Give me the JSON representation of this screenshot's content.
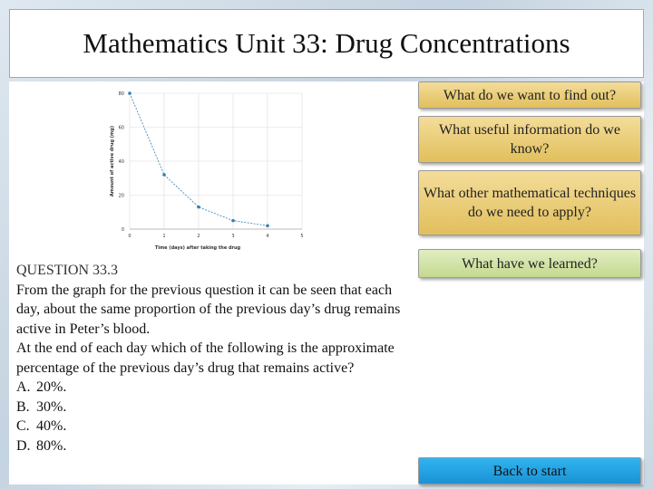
{
  "header": {
    "title": "Mathematics Unit 33: Drug Concentrations"
  },
  "chart_data": {
    "type": "line",
    "x": [
      0,
      1,
      2,
      3,
      4
    ],
    "values": [
      80,
      32,
      13,
      5,
      2
    ],
    "color": "#2f7fb8",
    "xlim": [
      0,
      5
    ],
    "xticks": [
      0,
      1,
      2,
      3,
      4,
      5
    ],
    "ylim": [
      0,
      80
    ],
    "yticks": [
      0,
      20,
      40,
      60,
      80
    ],
    "x_label": "Time (days) after taking the drug",
    "y_label": "Amount of active drug (mg)",
    "grid": true
  },
  "question": {
    "heading": "QUESTION 33.3",
    "paragraphs": [
      "From the graph for the previous question it can be seen that each day, about the same proportion of the previous day’s drug remains active in Peter’s blood.",
      "At the end of each day which of the following is the approximate percentage of the previous day’s drug that remains active?"
    ],
    "options": [
      {
        "letter": "A.",
        "text": "20%."
      },
      {
        "letter": "B.",
        "text": "30%."
      },
      {
        "letter": "C.",
        "text": "40%."
      },
      {
        "letter": "D.",
        "text": "80%."
      }
    ]
  },
  "buttons": [
    "What do we want to find out?",
    "What useful information do we know?",
    "What other mathematical techniques do we need to apply?",
    "What have we learned?",
    "Back to start"
  ]
}
